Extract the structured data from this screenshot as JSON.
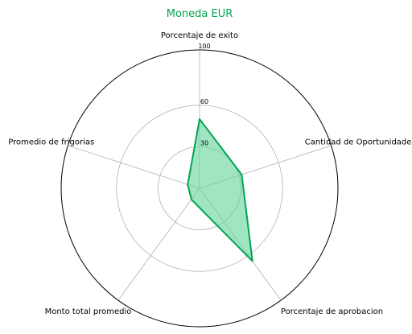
{
  "chart_data": {
    "type": "radar",
    "title": "Moneda EUR",
    "axes": [
      "Porcentaje de exito",
      "Cantidad de Oportunidades",
      "Porcentaje de aprobacion",
      "Monto total promedio",
      "Promedio de frigorias"
    ],
    "series": [
      {
        "values": [
          50,
          32,
          65,
          10,
          9
        ]
      }
    ],
    "r_range": [
      0,
      100
    ],
    "r_ticks": [
      30,
      60,
      100
    ],
    "grid": true,
    "colors": {
      "title": "#00a550",
      "line": "#00a550",
      "fill": "#5fd39a",
      "grid": "#b0b0b0",
      "outer": "#000000"
    }
  }
}
